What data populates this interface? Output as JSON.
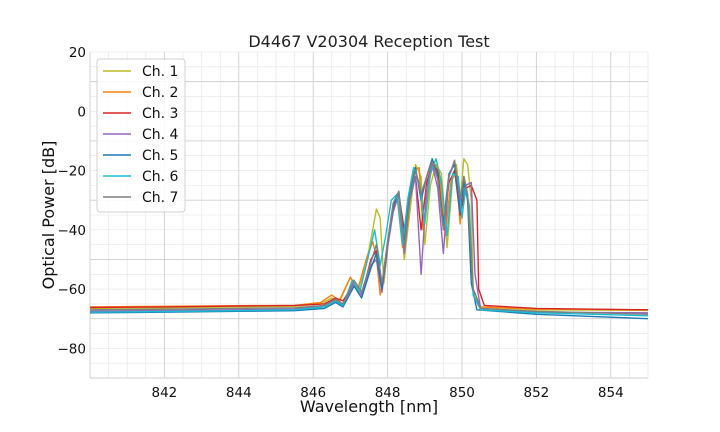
{
  "chart_data": {
    "type": "line",
    "title": "D4467 V20304 Reception Test",
    "xlabel": "Wavelength [nm]",
    "ylabel": "Optical Power [dB]",
    "xlim": [
      840,
      855
    ],
    "ylim": [
      -90,
      20
    ],
    "xticks": [
      842,
      844,
      846,
      848,
      850,
      852,
      854
    ],
    "yticks": [
      -80,
      -60,
      -40,
      -20,
      0,
      20
    ],
    "x_minor_step": 0.5,
    "y_minor_step": 5,
    "grid": true,
    "legend_position": "top-left",
    "series": [
      {
        "name": "Ch. 1",
        "color": "#bcbd22",
        "points": [
          [
            840,
            -66.5
          ],
          [
            842,
            -66.3
          ],
          [
            844,
            -66.0
          ],
          [
            845.5,
            -65.8
          ],
          [
            846.2,
            -65.0
          ],
          [
            846.5,
            -63.0
          ],
          [
            846.7,
            -64.5
          ],
          [
            847.0,
            -56.0
          ],
          [
            847.2,
            -61.0
          ],
          [
            847.45,
            -50.0
          ],
          [
            847.6,
            -40.0
          ],
          [
            847.7,
            -33.0
          ],
          [
            847.8,
            -36.0
          ],
          [
            847.9,
            -58.0
          ],
          [
            848.0,
            -46.0
          ],
          [
            848.15,
            -31.0
          ],
          [
            848.3,
            -29.0
          ],
          [
            848.45,
            -50.0
          ],
          [
            848.6,
            -34.0
          ],
          [
            848.75,
            -18.0
          ],
          [
            848.9,
            -22.0
          ],
          [
            849.0,
            -45.0
          ],
          [
            849.15,
            -25.0
          ],
          [
            849.3,
            -18.0
          ],
          [
            849.45,
            -21.0
          ],
          [
            849.6,
            -46.0
          ],
          [
            849.75,
            -22.0
          ],
          [
            849.85,
            -18.0
          ],
          [
            849.95,
            -30.0
          ],
          [
            850.05,
            -16.0
          ],
          [
            850.15,
            -18.0
          ],
          [
            850.25,
            -30.0
          ],
          [
            850.3,
            -62.0
          ],
          [
            850.5,
            -66.0
          ],
          [
            852,
            -67.0
          ],
          [
            855,
            -67.2
          ]
        ]
      },
      {
        "name": "Ch. 2",
        "color": "#ff7f0e",
        "points": [
          [
            840,
            -66.0
          ],
          [
            842,
            -65.8
          ],
          [
            844,
            -65.6
          ],
          [
            845.5,
            -65.5
          ],
          [
            846.2,
            -64.5
          ],
          [
            846.5,
            -62.0
          ],
          [
            846.7,
            -64.0
          ],
          [
            847.0,
            -56.0
          ],
          [
            847.2,
            -60.0
          ],
          [
            847.45,
            -49.0
          ],
          [
            847.6,
            -44.0
          ],
          [
            847.7,
            -49.0
          ],
          [
            847.8,
            -62.0
          ],
          [
            847.95,
            -52.0
          ],
          [
            848.1,
            -35.0
          ],
          [
            848.25,
            -28.0
          ],
          [
            848.4,
            -46.0
          ],
          [
            848.55,
            -30.0
          ],
          [
            848.7,
            -20.0
          ],
          [
            848.85,
            -19.0
          ],
          [
            848.95,
            -40.0
          ],
          [
            849.1,
            -24.0
          ],
          [
            849.25,
            -17.0
          ],
          [
            849.4,
            -22.0
          ],
          [
            849.55,
            -42.0
          ],
          [
            849.7,
            -24.0
          ],
          [
            849.85,
            -20.0
          ],
          [
            849.95,
            -38.0
          ],
          [
            850.05,
            -22.0
          ],
          [
            850.15,
            -28.0
          ],
          [
            850.3,
            -60.0
          ],
          [
            850.5,
            -66.0
          ],
          [
            852,
            -66.7
          ],
          [
            855,
            -67.0
          ]
        ]
      },
      {
        "name": "Ch. 3",
        "color": "#d62728",
        "points": [
          [
            840,
            -66.2
          ],
          [
            842,
            -66.0
          ],
          [
            844,
            -65.7
          ],
          [
            845.5,
            -65.5
          ],
          [
            846.3,
            -65.0
          ],
          [
            846.6,
            -63.0
          ],
          [
            846.8,
            -64.0
          ],
          [
            847.1,
            -58.0
          ],
          [
            847.3,
            -62.0
          ],
          [
            847.55,
            -50.0
          ],
          [
            847.7,
            -47.0
          ],
          [
            847.85,
            -60.0
          ],
          [
            848.0,
            -45.0
          ],
          [
            848.15,
            -33.0
          ],
          [
            848.3,
            -28.0
          ],
          [
            848.45,
            -40.0
          ],
          [
            848.6,
            -28.0
          ],
          [
            848.75,
            -22.0
          ],
          [
            848.9,
            -40.0
          ],
          [
            849.05,
            -24.0
          ],
          [
            849.2,
            -18.0
          ],
          [
            849.35,
            -20.0
          ],
          [
            849.5,
            -40.0
          ],
          [
            849.65,
            -24.0
          ],
          [
            849.8,
            -20.0
          ],
          [
            849.95,
            -35.0
          ],
          [
            850.1,
            -26.0
          ],
          [
            850.25,
            -25.0
          ],
          [
            850.4,
            -30.0
          ],
          [
            850.45,
            -60.0
          ],
          [
            850.6,
            -65.5
          ],
          [
            852,
            -66.5
          ],
          [
            855,
            -67.0
          ]
        ]
      },
      {
        "name": "Ch. 4",
        "color": "#9467bd",
        "points": [
          [
            840,
            -67.5
          ],
          [
            842,
            -67.2
          ],
          [
            844,
            -67.0
          ],
          [
            845.5,
            -66.8
          ],
          [
            846.3,
            -65.5
          ],
          [
            846.6,
            -63.5
          ],
          [
            846.8,
            -65.0
          ],
          [
            847.1,
            -58.0
          ],
          [
            847.3,
            -62.0
          ],
          [
            847.55,
            -52.0
          ],
          [
            847.7,
            -50.0
          ],
          [
            847.85,
            -61.0
          ],
          [
            848.0,
            -46.0
          ],
          [
            848.15,
            -34.0
          ],
          [
            848.3,
            -28.0
          ],
          [
            848.45,
            -48.0
          ],
          [
            848.6,
            -30.0
          ],
          [
            848.75,
            -22.0
          ],
          [
            848.9,
            -55.0
          ],
          [
            849.05,
            -26.0
          ],
          [
            849.2,
            -18.0
          ],
          [
            849.35,
            -26.0
          ],
          [
            849.5,
            -48.0
          ],
          [
            849.65,
            -22.0
          ],
          [
            849.8,
            -17.0
          ],
          [
            849.95,
            -32.0
          ],
          [
            850.1,
            -25.0
          ],
          [
            850.25,
            -24.0
          ],
          [
            850.35,
            -55.0
          ],
          [
            850.5,
            -66.5
          ],
          [
            852,
            -67.8
          ],
          [
            855,
            -68.0
          ]
        ]
      },
      {
        "name": "Ch. 5",
        "color": "#1f77b4",
        "points": [
          [
            840,
            -68.0
          ],
          [
            842,
            -67.8
          ],
          [
            844,
            -67.5
          ],
          [
            845.5,
            -67.3
          ],
          [
            846.3,
            -66.5
          ],
          [
            846.6,
            -64.5
          ],
          [
            846.8,
            -66.0
          ],
          [
            847.1,
            -59.0
          ],
          [
            847.3,
            -63.0
          ],
          [
            847.55,
            -53.0
          ],
          [
            847.7,
            -48.0
          ],
          [
            847.85,
            -60.0
          ],
          [
            848.0,
            -44.0
          ],
          [
            848.15,
            -32.0
          ],
          [
            848.3,
            -27.0
          ],
          [
            848.45,
            -44.0
          ],
          [
            848.6,
            -28.0
          ],
          [
            848.75,
            -19.0
          ],
          [
            848.9,
            -30.0
          ],
          [
            849.05,
            -22.0
          ],
          [
            849.2,
            -16.0
          ],
          [
            849.35,
            -22.0
          ],
          [
            849.5,
            -38.0
          ],
          [
            849.65,
            -21.0
          ],
          [
            849.8,
            -18.0
          ],
          [
            849.95,
            -34.0
          ],
          [
            850.05,
            -24.0
          ],
          [
            850.15,
            -30.0
          ],
          [
            850.25,
            -58.0
          ],
          [
            850.4,
            -67.0
          ],
          [
            852,
            -68.5
          ],
          [
            855,
            -70.0
          ]
        ]
      },
      {
        "name": "Ch. 6",
        "color": "#17becf",
        "points": [
          [
            840,
            -67.8
          ],
          [
            842,
            -67.6
          ],
          [
            844,
            -67.3
          ],
          [
            845.5,
            -67.0
          ],
          [
            846.3,
            -66.0
          ],
          [
            846.6,
            -64.0
          ],
          [
            846.8,
            -65.5
          ],
          [
            847.05,
            -57.0
          ],
          [
            847.25,
            -61.0
          ],
          [
            847.5,
            -48.0
          ],
          [
            847.65,
            -40.0
          ],
          [
            847.8,
            -52.0
          ],
          [
            847.95,
            -42.0
          ],
          [
            848.1,
            -30.0
          ],
          [
            848.25,
            -28.0
          ],
          [
            848.4,
            -45.0
          ],
          [
            848.55,
            -29.0
          ],
          [
            848.7,
            -19.0
          ],
          [
            848.85,
            -24.0
          ],
          [
            849.0,
            -38.0
          ],
          [
            849.15,
            -21.0
          ],
          [
            849.3,
            -16.0
          ],
          [
            849.45,
            -24.0
          ],
          [
            849.6,
            -42.0
          ],
          [
            849.75,
            -21.0
          ],
          [
            849.9,
            -22.0
          ],
          [
            850.0,
            -36.0
          ],
          [
            850.1,
            -26.0
          ],
          [
            850.2,
            -32.0
          ],
          [
            850.3,
            -62.0
          ],
          [
            850.5,
            -67.0
          ],
          [
            852,
            -68.0
          ],
          [
            855,
            -69.0
          ]
        ]
      },
      {
        "name": "Ch. 7",
        "color": "#7f7f7f",
        "points": [
          [
            840,
            -67.0
          ],
          [
            842,
            -66.8
          ],
          [
            844,
            -66.5
          ],
          [
            845.5,
            -66.3
          ],
          [
            846.3,
            -65.5
          ],
          [
            846.6,
            -63.5
          ],
          [
            846.8,
            -65.0
          ],
          [
            847.1,
            -57.0
          ],
          [
            847.3,
            -61.0
          ],
          [
            847.55,
            -51.0
          ],
          [
            847.7,
            -45.0
          ],
          [
            847.85,
            -58.0
          ],
          [
            848.0,
            -44.0
          ],
          [
            848.15,
            -31.0
          ],
          [
            848.3,
            -27.0
          ],
          [
            848.45,
            -46.0
          ],
          [
            848.6,
            -29.0
          ],
          [
            848.75,
            -20.0
          ],
          [
            848.9,
            -28.0
          ],
          [
            849.05,
            -22.0
          ],
          [
            849.2,
            -17.0
          ],
          [
            849.35,
            -23.0
          ],
          [
            849.5,
            -40.0
          ],
          [
            849.65,
            -22.0
          ],
          [
            849.8,
            -16.5
          ],
          [
            849.95,
            -30.0
          ],
          [
            850.05,
            -22.0
          ],
          [
            850.15,
            -28.0
          ],
          [
            850.3,
            -60.0
          ],
          [
            850.5,
            -66.5
          ],
          [
            852,
            -67.5
          ],
          [
            855,
            -68.5
          ]
        ]
      }
    ]
  }
}
